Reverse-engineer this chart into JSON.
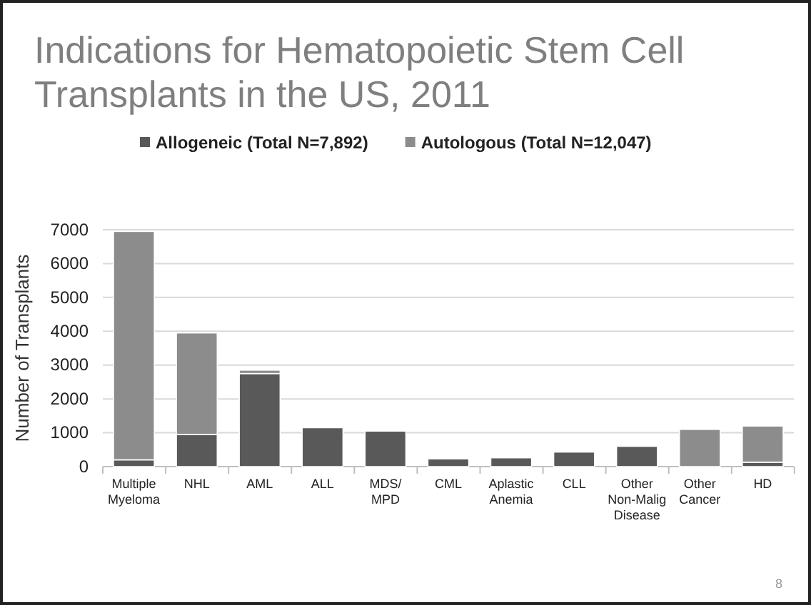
{
  "chart_data": {
    "type": "bar",
    "title": "Indications for Hematopoietic Stem Cell Transplants in the US, 2011",
    "categories": [
      "Multiple Myeloma",
      "NHL",
      "AML",
      "ALL",
      "MDS/MPD",
      "CML",
      "Aplastic Anemia",
      "CLL",
      "Other Non-Malig Disease",
      "Other Cancer",
      "HD"
    ],
    "series": [
      {
        "name": "Allogeneic (Total N=7,892)",
        "color": "#595959",
        "values": [
          200,
          950,
          2750,
          1150,
          1050,
          230,
          260,
          430,
          600,
          0,
          130
        ]
      },
      {
        "name": "Autologous (Total N=12,047)",
        "color": "#8c8c8c",
        "values": [
          6750,
          3000,
          100,
          0,
          0,
          0,
          0,
          0,
          0,
          1100,
          1070
        ]
      }
    ],
    "stacked": true,
    "ylabel": "Number of  Transplants",
    "ylim": [
      0,
      7000
    ],
    "yticks": [
      0,
      1000,
      2000,
      3000,
      4000,
      5000,
      6000,
      7000
    ],
    "grid": "y",
    "legend": "top",
    "annotations": [
      "8"
    ]
  }
}
